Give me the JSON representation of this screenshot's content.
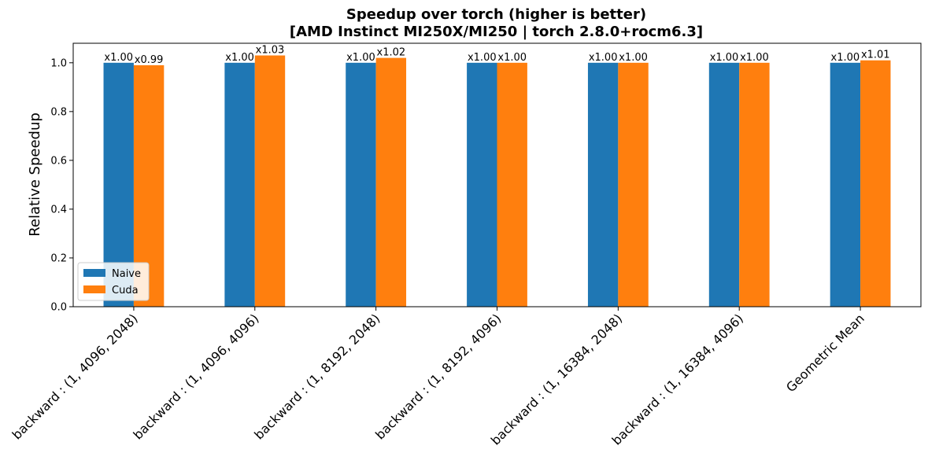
{
  "chart_data": {
    "type": "bar",
    "title": "Speedup over torch (higher is better)",
    "subtitle": "[AMD Instinct MI250X/MI250 | torch 2.8.0+rocm6.3]",
    "xlabel": "",
    "ylabel": "Relative Speedup",
    "ylim": [
      0,
      1.08
    ],
    "yticks": [
      0.0,
      0.2,
      0.4,
      0.6,
      0.8,
      1.0
    ],
    "ytick_labels": [
      "0.0",
      "0.2",
      "0.4",
      "0.6",
      "0.8",
      "1.0"
    ],
    "grid": false,
    "legend_position": "lower-left",
    "categories": [
      "backward : (1, 4096, 2048)",
      "backward : (1, 4096, 4096)",
      "backward : (1, 8192, 2048)",
      "backward : (1, 8192, 4096)",
      "backward : (1, 16384, 2048)",
      "backward : (1, 16384, 4096)",
      "Geometric Mean"
    ],
    "series": [
      {
        "name": "Naive",
        "color": "#1f77b4",
        "values": [
          1.0,
          1.0,
          1.0,
          1.0,
          1.0,
          1.0,
          1.0
        ],
        "labels": [
          "x1.00",
          "x1.00",
          "x1.00",
          "x1.00",
          "x1.00",
          "x1.00",
          "x1.00"
        ]
      },
      {
        "name": "Cuda",
        "color": "#ff7f0e",
        "values": [
          0.99,
          1.03,
          1.02,
          1.0,
          1.0,
          1.0,
          1.01
        ],
        "labels": [
          "x0.99",
          "x1.03",
          "x1.02",
          "x1.00",
          "x1.00",
          "x1.00",
          "x1.01"
        ]
      }
    ]
  }
}
